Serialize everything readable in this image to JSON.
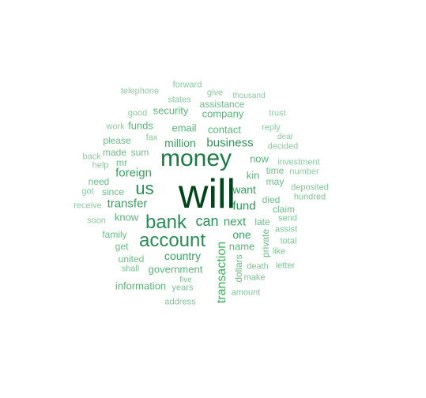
{
  "words": [
    {
      "text": "will",
      "color": "#00441b"
    },
    {
      "text": "money",
      "color": "#1b7a44"
    },
    {
      "text": "bank",
      "color": "#2a8b57"
    },
    {
      "text": "account",
      "color": "#2a8b57"
    },
    {
      "text": "us",
      "color": "#2a8b57"
    },
    {
      "text": "can",
      "color": "#2a8b57"
    },
    {
      "text": "transaction",
      "color": "#41ab5d"
    },
    {
      "text": "business",
      "color": "#2f9258"
    },
    {
      "text": "foreign",
      "color": "#3a9e60"
    },
    {
      "text": "transfer",
      "color": "#3a9e60"
    },
    {
      "text": "fund",
      "color": "#2f9258"
    },
    {
      "text": "next",
      "color": "#3a9e60"
    },
    {
      "text": "country",
      "color": "#3a9e60"
    },
    {
      "text": "one",
      "color": "#3a9e60"
    },
    {
      "text": "want",
      "color": "#3a9e60"
    },
    {
      "text": "million",
      "color": "#3a9e60"
    },
    {
      "text": "company",
      "color": "#5cb37a"
    },
    {
      "text": "contact",
      "color": "#5cb37a"
    },
    {
      "text": "email",
      "color": "#5cb37a"
    },
    {
      "text": "security",
      "color": "#5cb37a"
    },
    {
      "text": "funds",
      "color": "#5cb37a"
    },
    {
      "text": "know",
      "color": "#5cb37a"
    },
    {
      "text": "now",
      "color": "#5cb37a"
    },
    {
      "text": "kin",
      "color": "#5cb37a"
    },
    {
      "text": "name",
      "color": "#5cb37a"
    },
    {
      "text": "government",
      "color": "#5cb37a"
    },
    {
      "text": "information",
      "color": "#5cb37a"
    },
    {
      "text": "united",
      "color": "#6dbb88"
    },
    {
      "text": "family",
      "color": "#6dbb88"
    },
    {
      "text": "get",
      "color": "#6dbb88"
    },
    {
      "text": "since",
      "color": "#6dbb88"
    },
    {
      "text": "need",
      "color": "#6dbb88"
    },
    {
      "text": "please",
      "color": "#6dbb88"
    },
    {
      "text": "made",
      "color": "#6dbb88"
    },
    {
      "text": "sum",
      "color": "#6dbb88"
    },
    {
      "text": "mr",
      "color": "#6dbb88"
    },
    {
      "text": "assistance",
      "color": "#6dbb88"
    },
    {
      "text": "late",
      "color": "#6dbb88"
    },
    {
      "text": "died",
      "color": "#6dbb88"
    },
    {
      "text": "may",
      "color": "#6dbb88"
    },
    {
      "text": "time",
      "color": "#6dbb88"
    },
    {
      "text": "claim",
      "color": "#6dbb88"
    },
    {
      "text": "dollars",
      "color": "#6dbb88"
    },
    {
      "text": "private",
      "color": "#6dbb88"
    },
    {
      "text": "death",
      "color": "#7fc495"
    },
    {
      "text": "make",
      "color": "#7fc495"
    },
    {
      "text": "amount",
      "color": "#7fc495"
    },
    {
      "text": "years",
      "color": "#7fc495"
    },
    {
      "text": "five",
      "color": "#7fc495"
    },
    {
      "text": "address",
      "color": "#7fc495"
    },
    {
      "text": "shall",
      "color": "#7fc495"
    },
    {
      "text": "letter",
      "color": "#7fc495"
    },
    {
      "text": "like",
      "color": "#7fc495"
    },
    {
      "text": "total",
      "color": "#7fc495"
    },
    {
      "text": "assist",
      "color": "#7fc495"
    },
    {
      "text": "send",
      "color": "#7fc495"
    },
    {
      "text": "hundred",
      "color": "#7fc495"
    },
    {
      "text": "deposited",
      "color": "#7fc495"
    },
    {
      "text": "number",
      "color": "#8cc9a0"
    },
    {
      "text": "investment",
      "color": "#8cc9a0"
    },
    {
      "text": "decided",
      "color": "#8cc9a0"
    },
    {
      "text": "dear",
      "color": "#8cc9a0"
    },
    {
      "text": "reply",
      "color": "#8cc9a0"
    },
    {
      "text": "trust",
      "color": "#8cc9a0"
    },
    {
      "text": "thousand",
      "color": "#8cc9a0"
    },
    {
      "text": "give",
      "color": "#8cc9a0"
    },
    {
      "text": "forward",
      "color": "#8cc9a0"
    },
    {
      "text": "states",
      "color": "#8cc9a0"
    },
    {
      "text": "telephone",
      "color": "#8cc9a0"
    },
    {
      "text": "good",
      "color": "#8cc9a0"
    },
    {
      "text": "work",
      "color": "#8cc9a0"
    },
    {
      "text": "fax",
      "color": "#8cc9a0"
    },
    {
      "text": "back",
      "color": "#8cc9a0"
    },
    {
      "text": "help",
      "color": "#8cc9a0"
    },
    {
      "text": "got",
      "color": "#8cc9a0"
    },
    {
      "text": "receive",
      "color": "#8cc9a0"
    },
    {
      "text": "soon",
      "color": "#8cc9a0"
    }
  ]
}
